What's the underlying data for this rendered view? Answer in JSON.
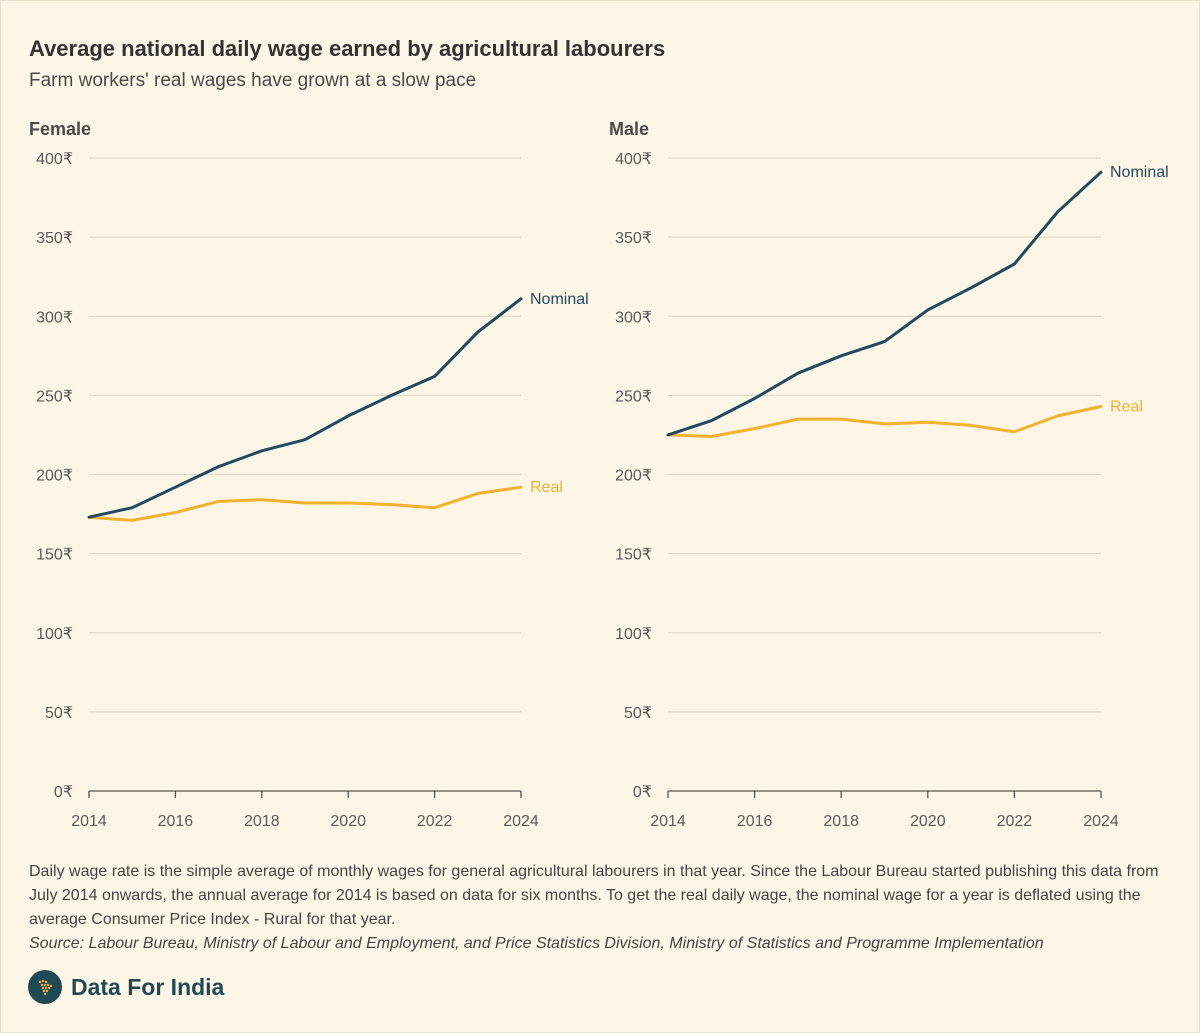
{
  "title": "Average national daily wage earned by agricultural labourers",
  "subtitle": "Farm workers' real wages have grown at a slow pace",
  "colors": {
    "nominal": "#1f4a60",
    "real": "#f2b12e",
    "grid": "#e0d9c8",
    "axis": "#555555"
  },
  "chart_data": [
    {
      "type": "line",
      "title": "Female",
      "x": [
        2014,
        2015,
        2016,
        2017,
        2018,
        2019,
        2020,
        2021,
        2022,
        2023,
        2024
      ],
      "xticks": [
        2014,
        2016,
        2018,
        2020,
        2022,
        2024
      ],
      "yticks": [
        0,
        50,
        100,
        150,
        200,
        250,
        300,
        350,
        400
      ],
      "ylim": [
        0,
        400
      ],
      "y_unit_suffix": "₹",
      "series": [
        {
          "name": "Nominal",
          "values": [
            173,
            179,
            192,
            205,
            215,
            222,
            237,
            250,
            262,
            290,
            311
          ]
        },
        {
          "name": "Real",
          "values": [
            173,
            171,
            176,
            183,
            184,
            182,
            182,
            181,
            179,
            188,
            192
          ]
        }
      ]
    },
    {
      "type": "line",
      "title": "Male",
      "x": [
        2014,
        2015,
        2016,
        2017,
        2018,
        2019,
        2020,
        2021,
        2022,
        2023,
        2024
      ],
      "xticks": [
        2014,
        2016,
        2018,
        2020,
        2022,
        2024
      ],
      "yticks": [
        0,
        50,
        100,
        150,
        200,
        250,
        300,
        350,
        400
      ],
      "ylim": [
        0,
        400
      ],
      "y_unit_suffix": "₹",
      "series": [
        {
          "name": "Nominal",
          "values": [
            225,
            234,
            248,
            264,
            275,
            284,
            304,
            318,
            333,
            366,
            391
          ]
        },
        {
          "name": "Real",
          "values": [
            225,
            224,
            229,
            235,
            235,
            232,
            233,
            231,
            227,
            237,
            243
          ]
        }
      ]
    }
  ],
  "note": "Daily wage rate is the simple average of monthly wages for general agricultural labourers in that year. Since the Labour Bureau started publishing this data from July 2014 onwards, the annual average for 2014 is based on data for six months. To get the real daily wage, the nominal wage for a year is deflated using the average Consumer Price Index - Rural for that year.",
  "source": "Source: Labour Bureau, Ministry of Labour and Employment, and Price Statistics Division, Ministry of Statistics and Programme Implementation",
  "brand": {
    "name": "Data For India",
    "logo_icon": "india-map-icon"
  }
}
